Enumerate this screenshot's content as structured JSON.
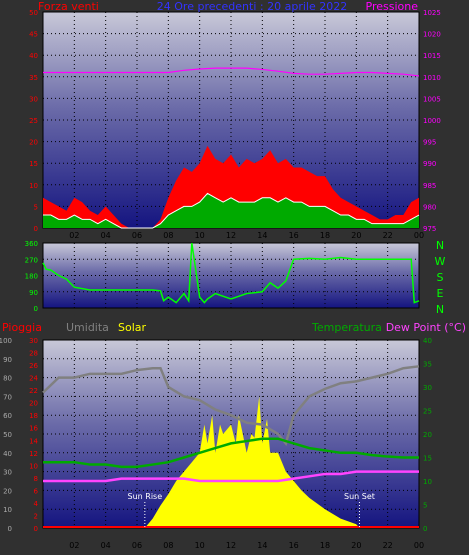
{
  "colors": {
    "background": "#303030",
    "wind": "#ff0000",
    "pressure": "#ff00ff",
    "title": "#3333ff",
    "direction": "#00ff00",
    "rain": "#ff0000",
    "humidity": "#808080",
    "solar": "#ffff00",
    "temperature": "#00aa00",
    "dewpoint": "#ff44ff",
    "sun": "#ffffff"
  },
  "x_ticks": [
    "02",
    "04",
    "06",
    "08",
    "10",
    "12",
    "14",
    "16",
    "18",
    "20",
    "22",
    "00"
  ],
  "chart_data": [
    {
      "type": "line",
      "title": "24 Ore precedenti : 20 aprile 2022",
      "labels": {
        "left": "Forza venti",
        "right": "Pressione"
      },
      "left_axis": {
        "ticks": [
          "0",
          "5",
          "10",
          "15",
          "20",
          "25",
          "30",
          "35",
          "40",
          "45",
          "50"
        ],
        "ylim": [
          0,
          50
        ]
      },
      "right_axis": {
        "ticks": [
          "975",
          "980",
          "985",
          "990",
          "995",
          "1000",
          "1005",
          "1010",
          "1015",
          "1020",
          "1025"
        ],
        "ylim": [
          975,
          1025
        ]
      },
      "series": {
        "gust": {
          "x": [
            0,
            0.5,
            1,
            1.5,
            2,
            2.5,
            3,
            3.5,
            4,
            4.5,
            5,
            5.5,
            6,
            6.5,
            7,
            7.5,
            8,
            8.5,
            9,
            9.5,
            10,
            10.5,
            11,
            11.5,
            12,
            12.5,
            13,
            13.5,
            14,
            14.5,
            15,
            15.5,
            16,
            16.5,
            17,
            17.5,
            18,
            18.5,
            19,
            19.5,
            20,
            20.5,
            21,
            21.5,
            22,
            22.5,
            23,
            23.5,
            24
          ],
          "y": [
            7,
            6,
            5,
            4,
            7,
            6,
            4,
            3,
            5,
            3,
            1,
            0,
            0,
            0,
            0,
            2,
            7,
            11,
            14,
            13,
            15,
            19,
            16,
            15,
            17,
            14,
            16,
            15,
            16,
            18,
            15,
            16,
            14,
            14,
            13,
            12,
            12,
            9,
            7,
            6,
            5,
            4,
            3,
            2,
            2,
            3,
            3,
            6,
            7
          ]
        },
        "avg": {
          "x": [
            0,
            0.5,
            1,
            1.5,
            2,
            2.5,
            3,
            3.5,
            4,
            4.5,
            5,
            5.5,
            6,
            6.5,
            7,
            7.5,
            8,
            8.5,
            9,
            9.5,
            10,
            10.5,
            11,
            11.5,
            12,
            12.5,
            13,
            13.5,
            14,
            14.5,
            15,
            15.5,
            16,
            16.5,
            17,
            17.5,
            18,
            18.5,
            19,
            19.5,
            20,
            20.5,
            21,
            21.5,
            22,
            22.5,
            23,
            23.5,
            24
          ],
          "y": [
            3,
            3,
            2,
            2,
            3,
            2,
            2,
            1,
            2,
            1,
            0,
            0,
            0,
            0,
            0,
            1,
            3,
            4,
            5,
            5,
            6,
            8,
            7,
            6,
            7,
            6,
            6,
            6,
            7,
            7,
            6,
            7,
            6,
            6,
            5,
            5,
            5,
            4,
            3,
            3,
            2,
            2,
            1,
            1,
            1,
            1,
            1,
            2,
            3
          ]
        },
        "pressure": {
          "x": [
            0,
            1,
            2,
            3,
            4,
            5,
            6,
            7,
            8,
            9,
            10,
            11,
            12,
            13,
            14,
            15,
            16,
            17,
            18,
            19,
            20,
            21,
            22,
            23,
            24
          ],
          "y": [
            1011,
            1011,
            1011,
            1011,
            1011,
            1011,
            1011,
            1011,
            1011,
            1011.5,
            1011.8,
            1012,
            1012,
            1012,
            1011.7,
            1011.3,
            1010.8,
            1010.6,
            1010.6,
            1010.8,
            1011,
            1011,
            1010.8,
            1010.6,
            1010.2
          ]
        }
      }
    },
    {
      "type": "line",
      "labels": {
        "right": [
          "N",
          "W",
          "S",
          "E",
          "N"
        ]
      },
      "left_axis": {
        "ticks": [
          "0",
          "90",
          "180",
          "270",
          "360"
        ],
        "ylim": [
          0,
          360
        ]
      },
      "series": {
        "direction": {
          "x": [
            0,
            0.2,
            0.5,
            1,
            1.5,
            2,
            3,
            4,
            5,
            6,
            7,
            7.5,
            7.7,
            8,
            8.5,
            9,
            9.3,
            9.5,
            10,
            10.3,
            10.5,
            11,
            12,
            13,
            14,
            14.5,
            15,
            15.5,
            16,
            17,
            18,
            19,
            20,
            21,
            22,
            23,
            23.5,
            23.7,
            24
          ],
          "y": [
            250,
            215,
            210,
            180,
            160,
            115,
            100,
            100,
            100,
            100,
            100,
            95,
            40,
            60,
            30,
            80,
            40,
            360,
            60,
            30,
            50,
            80,
            50,
            80,
            90,
            140,
            110,
            150,
            270,
            275,
            270,
            280,
            270,
            270,
            270,
            270,
            270,
            30,
            40
          ]
        }
      }
    },
    {
      "type": "line",
      "labels": {
        "rain": "Pioggia",
        "humidity": "Umidita",
        "solar": "Solar",
        "temperature": "Temperatura",
        "dewpoint": "Dew Point (°C)",
        "sunrise": "Sun Rise",
        "sunset": "Sun Set"
      },
      "left_axis": {
        "ticks": [
          "0",
          "10",
          "20",
          "30",
          "40",
          "50",
          "60",
          "70",
          "80",
          "90",
          "100"
        ],
        "ylim": [
          0,
          100
        ]
      },
      "rain_axis": {
        "ticks": [
          "0",
          "2",
          "4",
          "6",
          "8",
          "10",
          "12",
          "14",
          "16",
          "18",
          "20",
          "22",
          "24",
          "26",
          "28",
          "30"
        ],
        "ylim": [
          0,
          30
        ]
      },
      "right_axis": {
        "ticks": [
          "0",
          "5",
          "10",
          "15",
          "20",
          "25",
          "30",
          "35",
          "40"
        ],
        "ylim": [
          0,
          40
        ]
      },
      "sunrise_hour": 6.5,
      "sunset_hour": 20.2,
      "series": {
        "humidity": {
          "x": [
            0,
            0.5,
            1,
            2,
            3,
            4,
            5,
            6,
            7,
            7.5,
            8,
            9,
            10,
            11,
            12,
            13,
            14,
            15,
            15.5,
            16,
            17,
            18,
            19,
            20,
            21,
            22,
            23,
            24
          ],
          "y": [
            72,
            76,
            80,
            80,
            82,
            82,
            82,
            84,
            85,
            85,
            75,
            70,
            68,
            63,
            60,
            56,
            55,
            50,
            45,
            60,
            70,
            74,
            77,
            78,
            80,
            82,
            85,
            86
          ]
        },
        "temperature": {
          "x": [
            0,
            1,
            2,
            3,
            4,
            5,
            6,
            7,
            8,
            9,
            10,
            11,
            12,
            13,
            14,
            15,
            16,
            17,
            18,
            19,
            20,
            21,
            22,
            23,
            24
          ],
          "y": [
            14,
            14,
            14,
            13.5,
            13.5,
            13,
            13,
            13.5,
            14,
            15,
            16,
            17,
            18,
            18.5,
            19,
            19,
            18,
            17,
            16.5,
            16,
            16,
            15.5,
            15.2,
            15,
            15
          ]
        },
        "dewpoint": {
          "x": [
            0,
            1,
            2,
            3,
            4,
            5,
            6,
            7,
            8,
            9,
            10,
            11,
            12,
            13,
            14,
            15,
            16,
            17,
            18,
            19,
            20,
            21,
            22,
            23,
            24
          ],
          "y": [
            10,
            10,
            10,
            10,
            10,
            10.5,
            10.5,
            10.5,
            10.5,
            10.5,
            10,
            10,
            10,
            10,
            10,
            10,
            10.5,
            11,
            11.5,
            11.5,
            12,
            12,
            12,
            12,
            12
          ]
        },
        "solar": {
          "x": [
            6.5,
            7,
            7.5,
            8,
            8.5,
            9,
            9.5,
            10,
            10.3,
            10.5,
            10.8,
            11,
            11.3,
            11.5,
            12,
            12.3,
            12.5,
            13,
            13.3,
            13.5,
            13.8,
            14,
            14.3,
            14.5,
            15,
            15.5,
            16,
            16.5,
            17,
            18,
            19,
            20,
            20.2
          ],
          "y": [
            0,
            5,
            12,
            18,
            25,
            30,
            35,
            40,
            55,
            45,
            60,
            40,
            55,
            50,
            55,
            45,
            60,
            40,
            50,
            48,
            70,
            45,
            58,
            40,
            40,
            30,
            25,
            20,
            16,
            10,
            5,
            2,
            0
          ]
        },
        "rain": {
          "x": [
            0,
            24
          ],
          "y": [
            0,
            0
          ]
        }
      }
    }
  ]
}
